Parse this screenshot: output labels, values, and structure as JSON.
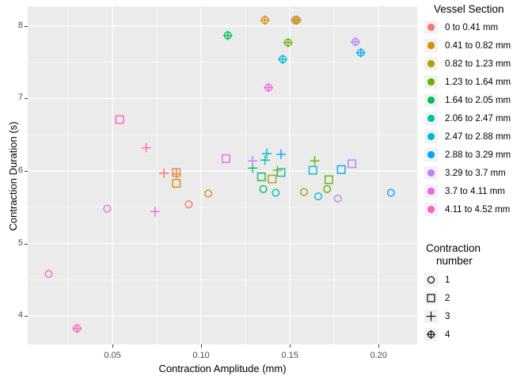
{
  "chart_data": {
    "type": "scatter",
    "title": "",
    "xlabel": "Contraction Amplitude (mm)",
    "ylabel": "Contraction Duration (s)",
    "xlim": [
      0.0022,
      0.2218
    ],
    "ylim": [
      3.61,
      8.27
    ],
    "x_major_ticks": [
      0.05,
      0.1,
      0.15,
      0.2
    ],
    "x_tick_labels": [
      "0.05",
      "0.10",
      "0.15",
      "0.20"
    ],
    "x_minor_ticks": [
      0.025,
      0.075,
      0.125,
      0.175
    ],
    "y_major_ticks": [
      4,
      5,
      6,
      7,
      8
    ],
    "y_tick_labels": [
      "4",
      "5",
      "6",
      "7",
      "8"
    ],
    "y_minor_ticks": [
      4.5,
      5.5,
      6.5,
      7.5
    ],
    "grid": true,
    "panel_bg": "#EBEBEB",
    "grid_color": "#FFFFFF",
    "legend_position": "right",
    "color_legend_title": "Vessel Section",
    "shape_legend_title_line1": "Contraction",
    "shape_legend_title_line2": "number",
    "shape_legend_entries": [
      {
        "shape": "circle",
        "contraction": 1,
        "label": "1"
      },
      {
        "shape": "square",
        "contraction": 2,
        "label": "2"
      },
      {
        "shape": "plus",
        "contraction": 3,
        "label": "3"
      },
      {
        "shape": "circle-plus",
        "contraction": 4,
        "label": "4"
      }
    ],
    "series": [
      {
        "name": "0 to 0.41 mm",
        "color": "#F8766D",
        "points": [
          {
            "x": 0.093,
            "y": 5.54,
            "contraction": 1
          },
          {
            "x": 0.086,
            "y": 5.98,
            "contraction": 2
          },
          {
            "x": 0.079,
            "y": 5.97,
            "contraction": 3
          },
          {
            "x": 0.153,
            "y": 8.08,
            "contraction": 4
          }
        ]
      },
      {
        "name": "0.41 to 0.82 mm",
        "color": "#DB8E00",
        "points": [
          {
            "x": 0.104,
            "y": 5.69,
            "contraction": 1
          },
          {
            "x": 0.086,
            "y": 5.83,
            "contraction": 2
          },
          {
            "x": 0.086,
            "y": 5.96,
            "contraction": 3
          },
          {
            "x": 0.136,
            "y": 8.08,
            "contraction": 4
          }
        ]
      },
      {
        "name": "0.82 to 1.23 mm",
        "color": "#AEA200",
        "points": [
          {
            "x": 0.158,
            "y": 5.71,
            "contraction": 1
          },
          {
            "x": 0.14,
            "y": 5.89,
            "contraction": 2
          },
          {
            "x": 0.143,
            "y": 6.01,
            "contraction": 3
          },
          {
            "x": 0.154,
            "y": 8.08,
            "contraction": 4
          }
        ]
      },
      {
        "name": "1.23 to 1.64 mm",
        "color": "#64B200",
        "points": [
          {
            "x": 0.171,
            "y": 5.75,
            "contraction": 1
          },
          {
            "x": 0.172,
            "y": 5.88,
            "contraction": 2
          },
          {
            "x": 0.164,
            "y": 6.14,
            "contraction": 3
          },
          {
            "x": 0.149,
            "y": 7.77,
            "contraction": 4
          }
        ]
      },
      {
        "name": "1.64 to 2.05 mm",
        "color": "#00BD5C",
        "points": [
          {
            "x": 0.135,
            "y": 5.75,
            "contraction": 1
          },
          {
            "x": 0.134,
            "y": 5.92,
            "contraction": 2
          },
          {
            "x": 0.129,
            "y": 6.04,
            "contraction": 3
          },
          {
            "x": 0.115,
            "y": 7.87,
            "contraction": 4
          }
        ]
      },
      {
        "name": "2.06 to 2.47 mm",
        "color": "#00C1A7",
        "points": [
          {
            "x": 0.142,
            "y": 5.7,
            "contraction": 1
          },
          {
            "x": 0.145,
            "y": 5.98,
            "contraction": 2
          },
          {
            "x": 0.136,
            "y": 6.15,
            "contraction": 3
          }
        ]
      },
      {
        "name": "2.47 to 2.88 mm",
        "color": "#00BADE",
        "points": [
          {
            "x": 0.166,
            "y": 5.65,
            "contraction": 1
          },
          {
            "x": 0.163,
            "y": 6.01,
            "contraction": 2
          },
          {
            "x": 0.137,
            "y": 6.24,
            "contraction": 3
          },
          {
            "x": 0.146,
            "y": 7.54,
            "contraction": 4
          }
        ]
      },
      {
        "name": "2.88 to 3.29 mm",
        "color": "#00A6FF",
        "points": [
          {
            "x": 0.207,
            "y": 5.7,
            "contraction": 1
          },
          {
            "x": 0.179,
            "y": 6.02,
            "contraction": 2
          },
          {
            "x": 0.145,
            "y": 6.23,
            "contraction": 3
          },
          {
            "x": 0.19,
            "y": 7.63,
            "contraction": 4
          }
        ]
      },
      {
        "name": "3.29 to 3.7 mm",
        "color": "#B385FF",
        "points": [
          {
            "x": 0.177,
            "y": 5.62,
            "contraction": 1
          },
          {
            "x": 0.185,
            "y": 6.1,
            "contraction": 2
          },
          {
            "x": 0.129,
            "y": 6.14,
            "contraction": 3
          },
          {
            "x": 0.187,
            "y": 7.78,
            "contraction": 4
          }
        ]
      },
      {
        "name": "3.7 to 4.11 mm",
        "color": "#EF67EB",
        "points": [
          {
            "x": 0.047,
            "y": 5.48,
            "contraction": 1
          },
          {
            "x": 0.114,
            "y": 6.17,
            "contraction": 2
          },
          {
            "x": 0.074,
            "y": 5.44,
            "contraction": 3
          },
          {
            "x": 0.138,
            "y": 7.15,
            "contraction": 4
          }
        ]
      },
      {
        "name": "4.11 to 4.52 mm",
        "color": "#FF63B6",
        "points": [
          {
            "x": 0.014,
            "y": 4.58,
            "contraction": 1
          },
          {
            "x": 0.054,
            "y": 6.71,
            "contraction": 2
          },
          {
            "x": 0.069,
            "y": 6.32,
            "contraction": 3
          },
          {
            "x": 0.03,
            "y": 3.83,
            "contraction": 4
          }
        ]
      }
    ]
  }
}
